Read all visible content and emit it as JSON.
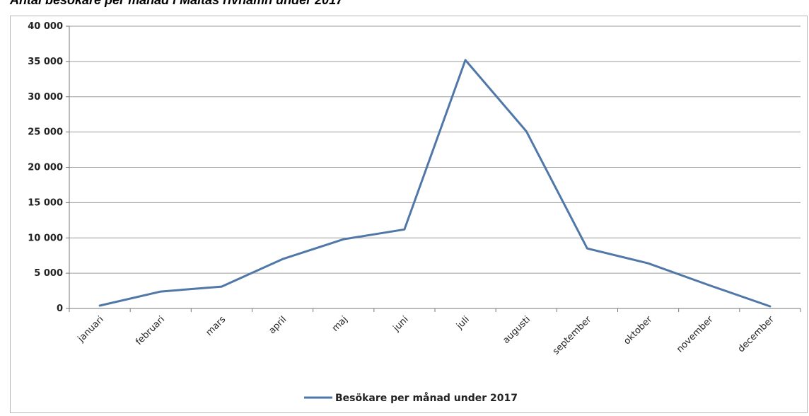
{
  "page": {
    "title": "Antal besökare per månad i Maltas rivhamn under 2017"
  },
  "colors": {
    "series": "#4f77a8",
    "grid": "#9e9e9e",
    "axis": "#777777"
  },
  "chart_data": {
    "type": "line",
    "title": "",
    "xlabel": "",
    "ylabel": "",
    "ylim": [
      0,
      40000
    ],
    "yticks": [
      0,
      5000,
      10000,
      15000,
      20000,
      25000,
      30000,
      35000,
      40000
    ],
    "ytick_labels": [
      "0",
      "5 000",
      "10 000",
      "15 000",
      "20 000",
      "25 000",
      "30 000",
      "35 000",
      "40 000"
    ],
    "grid": true,
    "legend_position": "bottom",
    "categories": [
      "januari",
      "februari",
      "mars",
      "april",
      "maj",
      "juni",
      "juli",
      "augusti",
      "september",
      "oktober",
      "november",
      "december"
    ],
    "series": [
      {
        "name": "Besökare per månad under 2017",
        "values": [
          400,
          2400,
          3100,
          7000,
          9800,
          11200,
          35200,
          25100,
          8500,
          6400,
          3300,
          300
        ]
      }
    ]
  }
}
